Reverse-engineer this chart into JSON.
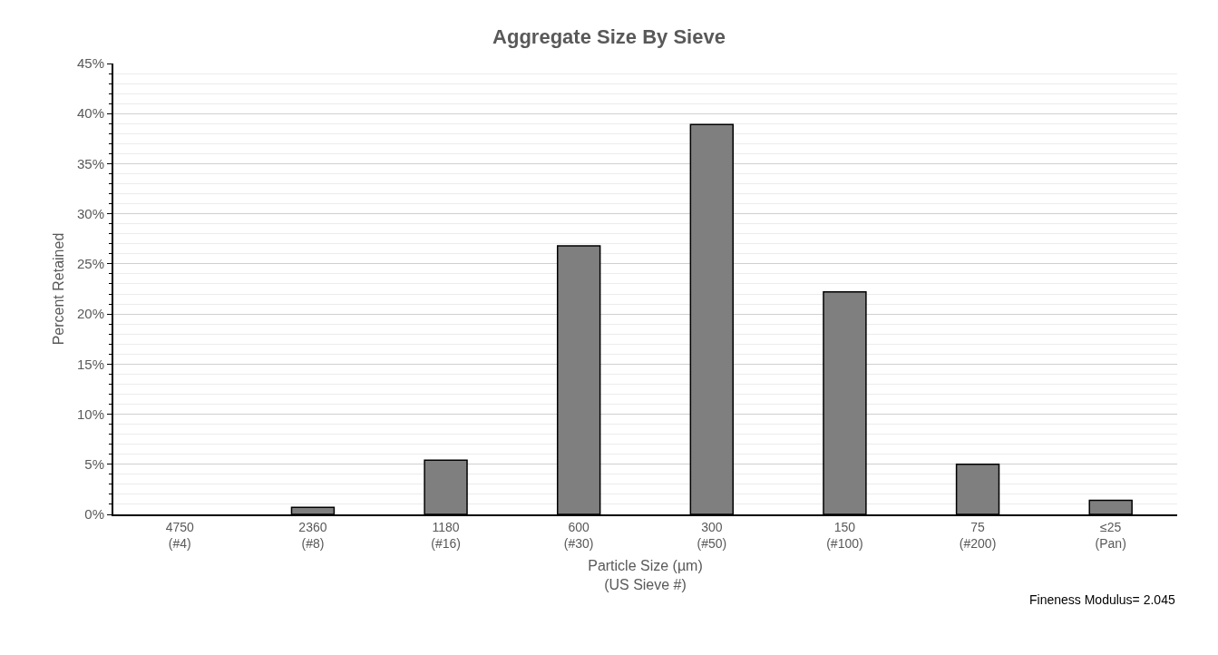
{
  "chart_data": {
    "type": "bar",
    "title": "Aggregate Size By Sieve",
    "xlabel": "Particle Size (µm)\n(US Sieve #)",
    "ylabel": "Percent Retained",
    "categories": [
      "4750\n(#4)",
      "2360\n(#8)",
      "1180\n(#16)",
      "600\n(#30)",
      "300\n(#50)",
      "150\n(#100)",
      "75\n(#200)",
      "≤25\n(Pan)"
    ],
    "values": [
      0,
      0.7,
      5.4,
      26.8,
      38.9,
      22.2,
      5.0,
      1.4
    ],
    "color": "#7f7f7f",
    "ylim": [
      0,
      45
    ],
    "yticks": [
      {
        "value": 0,
        "label": "0%"
      },
      {
        "value": 5,
        "label": "5%"
      },
      {
        "value": 10,
        "label": "10%"
      },
      {
        "value": 15,
        "label": "15%"
      },
      {
        "value": 20,
        "label": "20%"
      },
      {
        "value": 25,
        "label": "25%"
      },
      {
        "value": 30,
        "label": "30%"
      },
      {
        "value": 35,
        "label": "35%"
      },
      {
        "value": 40,
        "label": "40%"
      },
      {
        "value": 45,
        "label": "45%"
      }
    ],
    "grid": true,
    "annotations": [
      "Fineness Modulus= 2.045"
    ]
  }
}
